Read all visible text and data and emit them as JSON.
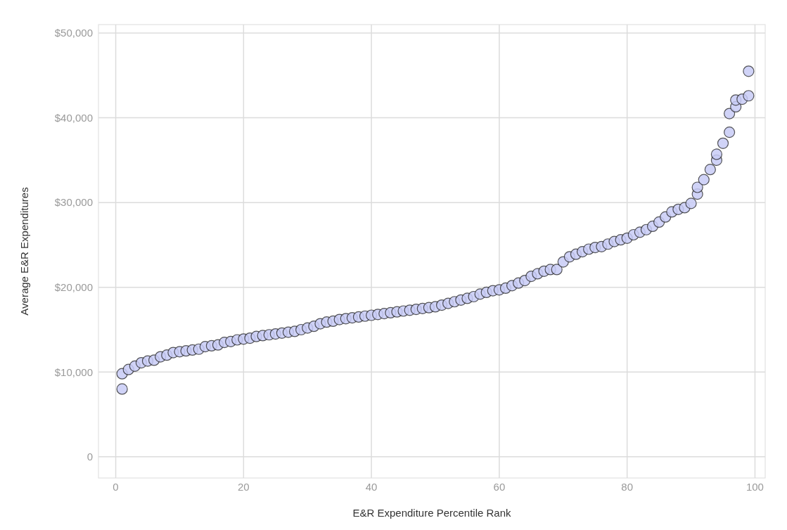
{
  "chart_data": {
    "type": "scatter",
    "xlabel": "E&R Expenditure Percentile Rank",
    "ylabel": "Average E&R Expenditures",
    "xlim": [
      -2.7,
      101.6
    ],
    "ylim": [
      -2500,
      51000
    ],
    "xticks": [
      0,
      20,
      40,
      60,
      80,
      100
    ],
    "yticks": [
      {
        "value": 0,
        "label": "0"
      },
      {
        "value": 10000,
        "label": "$10,000"
      },
      {
        "value": 20000,
        "label": "$20,000"
      },
      {
        "value": 30000,
        "label": "$30,000"
      },
      {
        "value": 40000,
        "label": "$40,000"
      },
      {
        "value": 50000,
        "label": "$50,000"
      }
    ],
    "grid": true,
    "marker": "circle",
    "series": [
      {
        "color": "#c8cbf6",
        "x": [
          1,
          1,
          2,
          3,
          4,
          5,
          6,
          7,
          8,
          9,
          10,
          11,
          12,
          13,
          14,
          15,
          16,
          17,
          18,
          19,
          20,
          21,
          22,
          23,
          24,
          25,
          26,
          27,
          28,
          29,
          30,
          31,
          32,
          33,
          34,
          35,
          36,
          37,
          38,
          39,
          40,
          41,
          42,
          43,
          44,
          45,
          46,
          47,
          48,
          49,
          50,
          51,
          52,
          53,
          54,
          55,
          56,
          57,
          58,
          59,
          60,
          61,
          62,
          63,
          64,
          65,
          66,
          67,
          68,
          69,
          70,
          71,
          72,
          73,
          74,
          75,
          76,
          77,
          78,
          79,
          80,
          81,
          82,
          83,
          84,
          85,
          86,
          87,
          88,
          89,
          90,
          91,
          91,
          92,
          93,
          94,
          94,
          95,
          96,
          96,
          97,
          97,
          98,
          99,
          99
        ],
        "values": [
          9800,
          8000,
          10300,
          10700,
          11100,
          11300,
          11400,
          11800,
          12000,
          12300,
          12400,
          12500,
          12600,
          12700,
          13000,
          13100,
          13200,
          13500,
          13600,
          13800,
          13900,
          14000,
          14200,
          14300,
          14400,
          14500,
          14600,
          14700,
          14800,
          15000,
          15200,
          15400,
          15700,
          15900,
          16000,
          16200,
          16300,
          16400,
          16500,
          16600,
          16700,
          16800,
          16900,
          17000,
          17100,
          17200,
          17300,
          17400,
          17500,
          17600,
          17700,
          17900,
          18100,
          18300,
          18500,
          18700,
          18900,
          19200,
          19400,
          19600,
          19700,
          19900,
          20200,
          20500,
          20800,
          21300,
          21600,
          21900,
          22100,
          22100,
          23000,
          23600,
          23900,
          24200,
          24500,
          24700,
          24800,
          25100,
          25400,
          25600,
          25800,
          26200,
          26500,
          26800,
          27200,
          27700,
          28300,
          28900,
          29200,
          29400,
          29900,
          31000,
          31800,
          32700,
          33900,
          35000,
          35700,
          37000,
          38300,
          40500,
          41300,
          42100,
          42200,
          42600,
          45500
        ]
      }
    ]
  }
}
